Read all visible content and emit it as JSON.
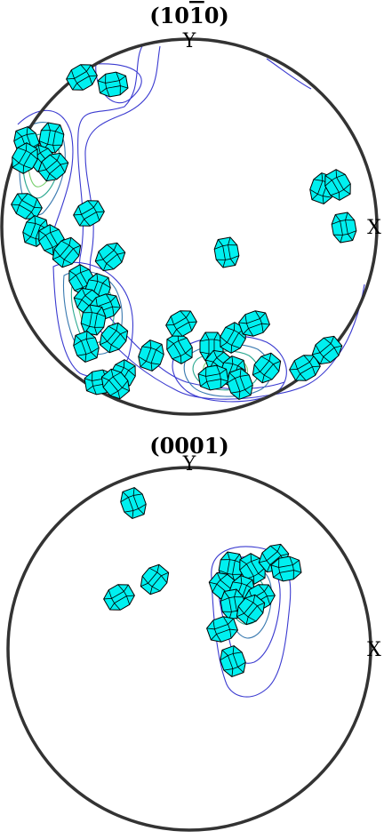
{
  "figure": {
    "colors": {
      "crystal": "#00f0f0",
      "circle": "#333333",
      "contour_outer": "#3a3ad0",
      "contour_mid": "#3a7ab0",
      "contour_inner": "#2aa890",
      "contour_core": "#7ad070"
    },
    "panels": [
      {
        "title": "(1010)",
        "title_parts": {
          "pre": "(10",
          "bar": "1",
          "post": "0)"
        },
        "y_label": "Y",
        "x_label": "X"
      },
      {
        "title": "(0001)",
        "title_parts": {
          "pre": "(0001)",
          "bar": "",
          "post": ""
        },
        "y_label": "Y",
        "x_label": "X"
      }
    ]
  }
}
